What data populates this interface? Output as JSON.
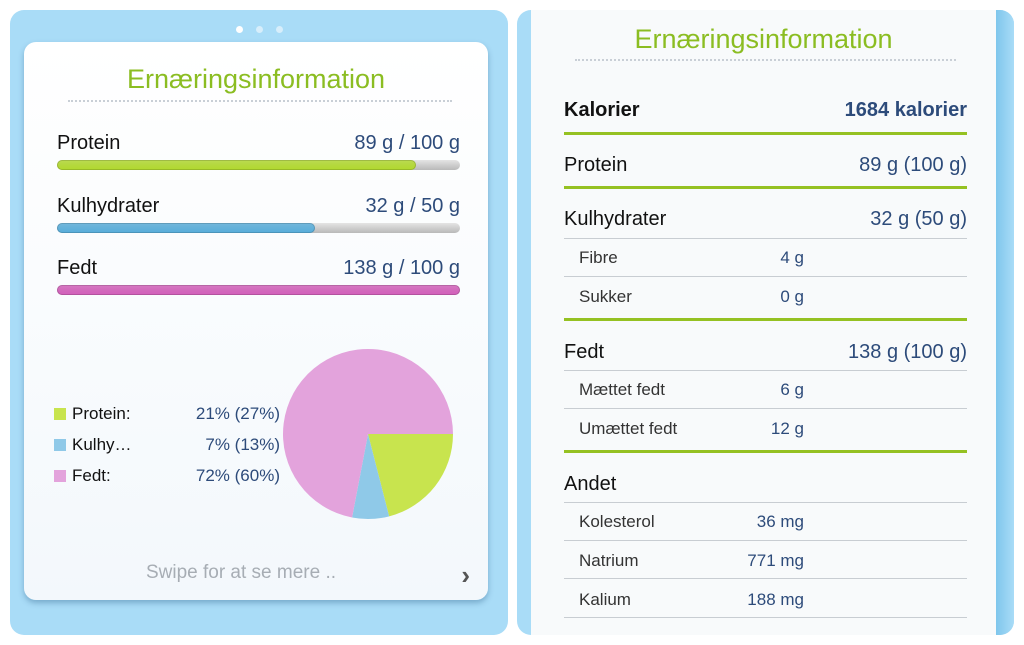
{
  "colors": {
    "accent_green": "#8bbd22",
    "protein": "#c8e44e",
    "carbs": "#8fc9e8",
    "fat": "#e3a3dc",
    "value_text": "#2d4b7a",
    "frame_blue": "#a9dcf7"
  },
  "left": {
    "page_indicator": {
      "pages": 3,
      "active": 1
    },
    "title": "Ernæringsinformation",
    "bars": [
      {
        "label": "Protein",
        "value": "89 g / 100 g",
        "fraction": 0.89,
        "color": "#b2d92e"
      },
      {
        "label": "Kulhydrater",
        "value": "32 g / 50 g",
        "fraction": 0.64,
        "color": "#58aedb"
      },
      {
        "label": "Fedt",
        "value": "138 g / 100 g",
        "fraction": 1.0,
        "color": "#d35fbb"
      }
    ],
    "legend": [
      {
        "name": "Protein:",
        "pct": "21% (27%)"
      },
      {
        "name": "Kulhy…",
        "pct": "7% (13%)"
      },
      {
        "name": "Fedt:",
        "pct": "72% (60%)"
      }
    ],
    "swipe_text": "Swipe for at se mere ..",
    "chevron_icon": "chevron-right-icon"
  },
  "chart_data": {
    "type": "pie",
    "categories": [
      "Protein",
      "Kulhydrater",
      "Fedt"
    ],
    "values": [
      21,
      7,
      72
    ],
    "colors": [
      "#c8e44e",
      "#8fc9e8",
      "#e3a3dc"
    ],
    "title": ""
  },
  "right": {
    "title": "Ernæringsinformation",
    "kalorier": {
      "label": "Kalorier",
      "value": "1684 kalorier"
    },
    "protein": {
      "label": "Protein",
      "value": "89 g (100 g)"
    },
    "kulhydrater": {
      "label": "Kulhydrater",
      "value": "32 g (50 g)"
    },
    "fibre": {
      "label": "Fibre",
      "value": "4 g"
    },
    "sukker": {
      "label": "Sukker",
      "value": "0 g"
    },
    "fedt": {
      "label": "Fedt",
      "value": "138 g (100 g)"
    },
    "maettet": {
      "label": "Mættet fedt",
      "value": "6 g"
    },
    "umaettet": {
      "label": "Umættet fedt",
      "value": "12 g"
    },
    "andet": {
      "label": "Andet"
    },
    "kolesterol": {
      "label": "Kolesterol",
      "value": "36 mg"
    },
    "natrium": {
      "label": "Natrium",
      "value": "771 mg"
    },
    "kalium": {
      "label": "Kalium",
      "value": "188 mg"
    }
  }
}
